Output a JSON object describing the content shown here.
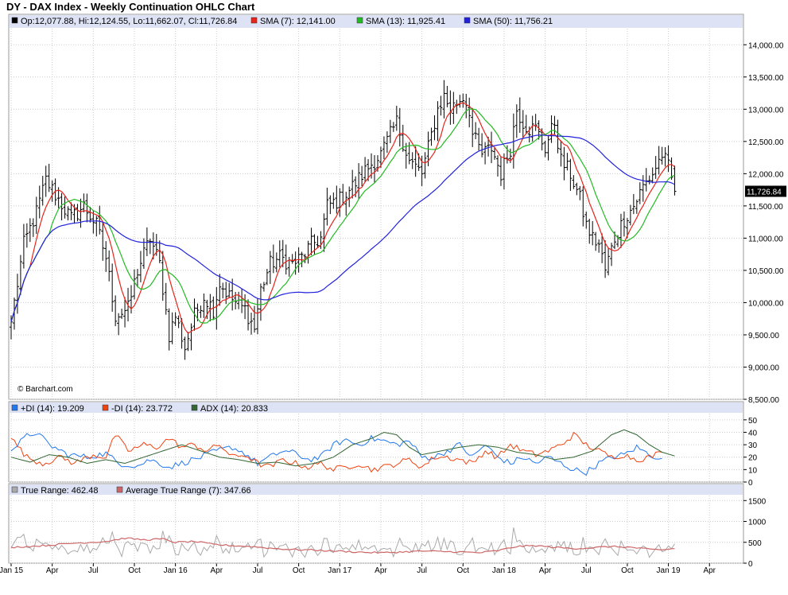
{
  "title": "DY - DAX Index - Weekly Continuation OHLC Chart",
  "watermark": "© Barchart.com",
  "colors": {
    "price": "#000000",
    "sma7": "#e8241c",
    "sma13": "#22bb22",
    "sma50": "#2222dd",
    "plus_di": "#2277ee",
    "minus_di": "#ee4411",
    "adx": "#336633",
    "true_range": "#aaaaaa",
    "atr": "#cc6666",
    "legend_bg": "#dde3f5",
    "grid": "#cccccc",
    "last_bg": "#000000"
  },
  "legends": {
    "price": [
      {
        "text": "Op:12,077.88, Hi:12,124.55, Lo:11,662.07, Cl:11,726.84",
        "color": "#000000"
      },
      {
        "text": "SMA (7): 12,141.00",
        "color": "#e8241c"
      },
      {
        "text": "SMA (13): 11,925.41",
        "color": "#22bb22"
      },
      {
        "text": "SMA (50): 11,756.21",
        "color": "#2222dd"
      }
    ],
    "dmi": [
      {
        "text": "+DI (14): 19.209",
        "color": "#2277ee"
      },
      {
        "text": "-DI (14): 23.772",
        "color": "#ee4411"
      },
      {
        "text": "ADX (14): 20.833",
        "color": "#336633"
      }
    ],
    "atr": [
      {
        "text": "True Range: 462.48",
        "color": "#aaaaaa"
      },
      {
        "text": "Average True Range (7): 347.66",
        "color": "#cc6666"
      }
    ]
  },
  "last_price_label": "11,726.84",
  "chart_data": [
    {
      "type": "ohlc",
      "title": "DY - DAX Index - Weekly Continuation OHLC Chart",
      "x_labels": [
        "Jan 15",
        "Apr",
        "Jul",
        "Oct",
        "Jan 16",
        "Apr",
        "Jul",
        "Oct",
        "Jan 17",
        "Apr",
        "Jul",
        "Oct",
        "Jan 18",
        "Apr",
        "Jul",
        "Oct",
        "Jan 19",
        "Apr"
      ],
      "x_label_week_index": [
        0,
        13,
        26,
        39,
        52,
        65,
        78,
        91,
        104,
        117,
        130,
        143,
        156,
        169,
        182,
        195,
        208,
        221
      ],
      "y_ticks": [
        "8,500.00",
        "9,000.00",
        "9,500.00",
        "10,000.00",
        "10,500.00",
        "11,000.00",
        "11,500.00",
        "12,000.00",
        "12,500.00",
        "13,000.00",
        "13,500.00",
        "14,000.00"
      ],
      "ylim": [
        8500,
        14250
      ],
      "grid": true,
      "series": [
        {
          "name": "SMA (7)",
          "last": 12141.0
        },
        {
          "name": "SMA (13)",
          "last": 11925.41
        },
        {
          "name": "SMA (50)",
          "last": 11756.21
        }
      ],
      "last_bar": {
        "open": 12077.88,
        "high": 12124.55,
        "low": 11662.07,
        "close": 11726.84
      },
      "close_anchors": [
        [
          0,
          9700
        ],
        [
          4,
          10900
        ],
        [
          8,
          11400
        ],
        [
          11,
          11900
        ],
        [
          15,
          11600
        ],
        [
          19,
          11300
        ],
        [
          23,
          11500
        ],
        [
          27,
          11200
        ],
        [
          30,
          10700
        ],
        [
          33,
          9800
        ],
        [
          37,
          9900
        ],
        [
          40,
          10500
        ],
        [
          44,
          11000
        ],
        [
          47,
          10600
        ],
        [
          50,
          9500
        ],
        [
          52,
          9800
        ],
        [
          55,
          9300
        ],
        [
          58,
          9800
        ],
        [
          61,
          10100
        ],
        [
          64,
          9900
        ],
        [
          66,
          10300
        ],
        [
          69,
          10100
        ],
        [
          72,
          9950
        ],
        [
          74,
          9900
        ],
        [
          77,
          9600
        ],
        [
          79,
          10200
        ],
        [
          82,
          10600
        ],
        [
          85,
          10700
        ],
        [
          89,
          10600
        ],
        [
          92,
          10700
        ],
        [
          95,
          10900
        ],
        [
          98,
          11000
        ],
        [
          100,
          11500
        ],
        [
          104,
          11600
        ],
        [
          108,
          11800
        ],
        [
          113,
          12100
        ],
        [
          117,
          12300
        ],
        [
          120,
          12600
        ],
        [
          122,
          12800
        ],
        [
          124,
          12500
        ],
        [
          126,
          12200
        ],
        [
          130,
          12000
        ],
        [
          133,
          12600
        ],
        [
          135,
          13000
        ],
        [
          137,
          13200
        ],
        [
          139,
          13000
        ],
        [
          141,
          13100
        ],
        [
          143,
          13200
        ],
        [
          145,
          13000
        ],
        [
          146,
          12600
        ],
        [
          149,
          12300
        ],
        [
          152,
          12400
        ],
        [
          155,
          12000
        ],
        [
          158,
          12400
        ],
        [
          160,
          13000
        ],
        [
          162,
          12800
        ],
        [
          164,
          12700
        ],
        [
          166,
          12700
        ],
        [
          169,
          12400
        ],
        [
          172,
          12800
        ],
        [
          174,
          12200
        ],
        [
          177,
          12000
        ],
        [
          180,
          11600
        ],
        [
          182,
          11200
        ],
        [
          184,
          11000
        ],
        [
          186,
          10900
        ],
        [
          188,
          10500
        ],
        [
          191,
          11000
        ],
        [
          194,
          11300
        ],
        [
          197,
          11500
        ],
        [
          200,
          11800
        ],
        [
          203,
          12000
        ],
        [
          206,
          12300
        ],
        [
          208,
          12100
        ],
        [
          210,
          11727
        ]
      ]
    },
    {
      "type": "line",
      "indicator": "DMI",
      "y_ticks": [
        0,
        10,
        20,
        30,
        40,
        50
      ],
      "ylim": [
        0,
        55
      ],
      "series": [
        {
          "name": "+DI (14)",
          "last": 19.209,
          "anchors": [
            [
              0,
              25
            ],
            [
              5,
              37
            ],
            [
              8,
              40
            ],
            [
              12,
              30
            ],
            [
              18,
              22
            ],
            [
              24,
              20
            ],
            [
              30,
              23
            ],
            [
              34,
              15
            ],
            [
              40,
              13
            ],
            [
              44,
              18
            ],
            [
              50,
              12
            ],
            [
              55,
              16
            ],
            [
              60,
              20
            ],
            [
              65,
              25
            ],
            [
              70,
              28
            ],
            [
              74,
              23
            ],
            [
              78,
              15
            ],
            [
              82,
              20
            ],
            [
              86,
              25
            ],
            [
              90,
              23
            ],
            [
              94,
              18
            ],
            [
              98,
              20
            ],
            [
              102,
              30
            ],
            [
              106,
              34
            ],
            [
              110,
              30
            ],
            [
              114,
              35
            ],
            [
              118,
              33
            ],
            [
              122,
              30
            ],
            [
              126,
              33
            ],
            [
              130,
              20
            ],
            [
              134,
              20
            ],
            [
              138,
              25
            ],
            [
              142,
              30
            ],
            [
              146,
              20
            ],
            [
              150,
              30
            ],
            [
              154,
              20
            ],
            [
              158,
              15
            ],
            [
              162,
              20
            ],
            [
              166,
              15
            ],
            [
              170,
              20
            ],
            [
              174,
              15
            ],
            [
              178,
              10
            ],
            [
              182,
              8
            ],
            [
              186,
              15
            ],
            [
              190,
              20
            ],
            [
              194,
              22
            ],
            [
              198,
              28
            ],
            [
              202,
              22
            ],
            [
              206,
              19
            ]
          ]
        },
        {
          "name": "-DI (14)",
          "last": 23.772,
          "anchors": [
            [
              0,
              35
            ],
            [
              5,
              20
            ],
            [
              10,
              15
            ],
            [
              16,
              20
            ],
            [
              20,
              15
            ],
            [
              26,
              22
            ],
            [
              30,
              20
            ],
            [
              33,
              38
            ],
            [
              37,
              25
            ],
            [
              42,
              30
            ],
            [
              46,
              28
            ],
            [
              50,
              35
            ],
            [
              54,
              28
            ],
            [
              58,
              30
            ],
            [
              62,
              25
            ],
            [
              66,
              30
            ],
            [
              70,
              20
            ],
            [
              74,
              22
            ],
            [
              78,
              15
            ],
            [
              82,
              12
            ],
            [
              86,
              18
            ],
            [
              90,
              15
            ],
            [
              94,
              12
            ],
            [
              98,
              15
            ],
            [
              102,
              10
            ],
            [
              106,
              12
            ],
            [
              110,
              15
            ],
            [
              114,
              10
            ],
            [
              118,
              12
            ],
            [
              122,
              15
            ],
            [
              126,
              18
            ],
            [
              130,
              12
            ],
            [
              134,
              20
            ],
            [
              138,
              20
            ],
            [
              142,
              18
            ],
            [
              146,
              15
            ],
            [
              150,
              25
            ],
            [
              154,
              20
            ],
            [
              158,
              30
            ],
            [
              162,
              25
            ],
            [
              166,
              22
            ],
            [
              170,
              25
            ],
            [
              174,
              30
            ],
            [
              178,
              38
            ],
            [
              182,
              30
            ],
            [
              186,
              25
            ],
            [
              190,
              20
            ],
            [
              194,
              22
            ],
            [
              198,
              18
            ],
            [
              202,
              20
            ],
            [
              206,
              24
            ]
          ]
        },
        {
          "name": "ADX (14)",
          "last": 20.833,
          "anchors": [
            [
              0,
              20
            ],
            [
              6,
              16
            ],
            [
              12,
              22
            ],
            [
              18,
              20
            ],
            [
              24,
              15
            ],
            [
              30,
              18
            ],
            [
              36,
              15
            ],
            [
              42,
              20
            ],
            [
              48,
              25
            ],
            [
              54,
              30
            ],
            [
              60,
              25
            ],
            [
              66,
              20
            ],
            [
              72,
              18
            ],
            [
              78,
              15
            ],
            [
              84,
              16
            ],
            [
              90,
              13
            ],
            [
              96,
              15
            ],
            [
              102,
              20
            ],
            [
              108,
              30
            ],
            [
              114,
              35
            ],
            [
              118,
              40
            ],
            [
              122,
              38
            ],
            [
              126,
              28
            ],
            [
              130,
              22
            ],
            [
              136,
              25
            ],
            [
              142,
              28
            ],
            [
              148,
              30
            ],
            [
              154,
              28
            ],
            [
              160,
              24
            ],
            [
              166,
              22
            ],
            [
              172,
              18
            ],
            [
              178,
              20
            ],
            [
              184,
              25
            ],
            [
              190,
              38
            ],
            [
              194,
              42
            ],
            [
              198,
              38
            ],
            [
              202,
              30
            ],
            [
              206,
              24
            ],
            [
              210,
              21
            ]
          ]
        }
      ]
    },
    {
      "type": "line",
      "indicator": "ATR",
      "y_ticks": [
        0,
        500,
        1000,
        1500
      ],
      "ylim": [
        0,
        1620
      ],
      "series": [
        {
          "name": "True Range",
          "last": 462.48
        },
        {
          "name": "Average True Range (7)",
          "last": 347.66,
          "anchors": [
            [
              0,
              380
            ],
            [
              10,
              420
            ],
            [
              20,
              480
            ],
            [
              30,
              520
            ],
            [
              36,
              600
            ],
            [
              42,
              560
            ],
            [
              48,
              580
            ],
            [
              52,
              500
            ],
            [
              58,
              520
            ],
            [
              64,
              450
            ],
            [
              70,
              420
            ],
            [
              76,
              400
            ],
            [
              82,
              360
            ],
            [
              88,
              330
            ],
            [
              94,
              320
            ],
            [
              100,
              300
            ],
            [
              106,
              280
            ],
            [
              112,
              260
            ],
            [
              118,
              250
            ],
            [
              124,
              270
            ],
            [
              130,
              290
            ],
            [
              136,
              280
            ],
            [
              142,
              270
            ],
            [
              148,
              250
            ],
            [
              154,
              300
            ],
            [
              160,
              400
            ],
            [
              166,
              420
            ],
            [
              172,
              380
            ],
            [
              178,
              350
            ],
            [
              184,
              370
            ],
            [
              190,
              400
            ],
            [
              196,
              380
            ],
            [
              202,
              330
            ],
            [
              206,
              320
            ],
            [
              210,
              348
            ]
          ]
        }
      ]
    }
  ]
}
